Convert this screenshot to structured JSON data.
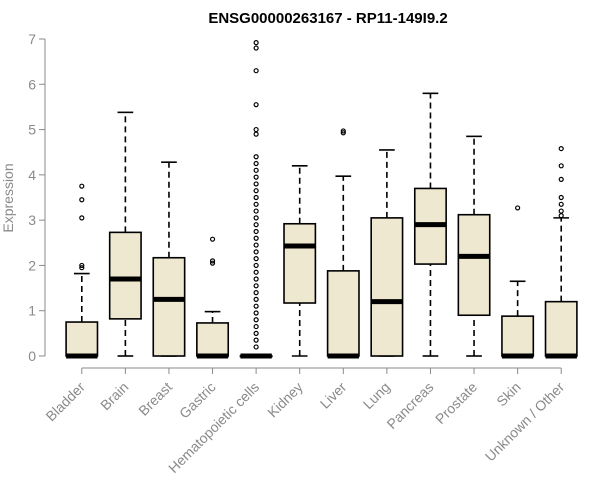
{
  "chart_data": {
    "type": "boxplot",
    "title": "ENSG00000263167 - RP11-149I9.2",
    "xlabel": "",
    "ylabel": "Expression",
    "ylim": [
      0,
      7
    ],
    "yticks": [
      0,
      1,
      2,
      3,
      4,
      5,
      6,
      7
    ],
    "grid": false,
    "colors": {
      "box_fill": "#efe8d0",
      "box_stroke": "#000000",
      "axis": "#8a8a8a"
    },
    "categories": [
      "Bladder",
      "Brain",
      "Breast",
      "Gastric",
      "Hematopoietic cells",
      "Kidney",
      "Liver",
      "Lung",
      "Pancreas",
      "Prostate",
      "Skin",
      "Unknown / Other"
    ],
    "boxes": [
      {
        "category": "Bladder",
        "min": 0,
        "q1": 0,
        "median": 0,
        "q3": 0.75,
        "max": 1.82,
        "outliers": [
          1.95,
          2.0,
          3.05,
          3.45,
          3.75
        ]
      },
      {
        "category": "Brain",
        "min": 0,
        "q1": 0.82,
        "median": 1.7,
        "q3": 2.73,
        "max": 5.38,
        "outliers": []
      },
      {
        "category": "Breast",
        "min": 0,
        "q1": 0,
        "median": 1.25,
        "q3": 2.17,
        "max": 4.28,
        "outliers": []
      },
      {
        "category": "Gastric",
        "min": 0,
        "q1": 0,
        "median": 0,
        "q3": 0.73,
        "max": 0.98,
        "outliers": [
          2.05,
          2.1,
          2.58
        ]
      },
      {
        "category": "Hematopoietic cells",
        "min": 0,
        "q1": 0,
        "median": 0,
        "q3": 0,
        "max": 0,
        "outliers": [
          0.2,
          0.35,
          0.5,
          0.65,
          0.8,
          0.95,
          1.1,
          1.25,
          1.4,
          1.55,
          1.7,
          1.85,
          2.0,
          2.15,
          2.3,
          2.45,
          2.6,
          2.75,
          2.9,
          3.05,
          3.2,
          3.35,
          3.5,
          3.65,
          3.8,
          3.95,
          4.1,
          4.25,
          4.4,
          4.9,
          5.0,
          5.55,
          6.3,
          6.8,
          6.92
        ]
      },
      {
        "category": "Kidney",
        "min": 0,
        "q1": 1.17,
        "median": 2.43,
        "q3": 2.92,
        "max": 4.2,
        "outliers": []
      },
      {
        "category": "Liver",
        "min": 0,
        "q1": 0,
        "median": 0,
        "q3": 1.88,
        "max": 3.97,
        "outliers": [
          4.93,
          4.97
        ]
      },
      {
        "category": "Lung",
        "min": 0,
        "q1": 0,
        "median": 1.2,
        "q3": 3.05,
        "max": 4.55,
        "outliers": []
      },
      {
        "category": "Pancreas",
        "min": 0,
        "q1": 2.03,
        "median": 2.9,
        "q3": 3.7,
        "max": 5.8,
        "outliers": []
      },
      {
        "category": "Prostate",
        "min": 0,
        "q1": 0.9,
        "median": 2.2,
        "q3": 3.12,
        "max": 4.85,
        "outliers": []
      },
      {
        "category": "Skin",
        "min": 0,
        "q1": 0,
        "median": 0,
        "q3": 0.88,
        "max": 1.65,
        "outliers": [
          3.27
        ]
      },
      {
        "category": "Unknown / Other",
        "min": 0,
        "q1": 0,
        "median": 0,
        "q3": 1.2,
        "max": 3.05,
        "outliers": [
          3.1,
          3.2,
          3.35,
          3.5,
          3.9,
          4.2,
          4.58
        ]
      }
    ]
  }
}
